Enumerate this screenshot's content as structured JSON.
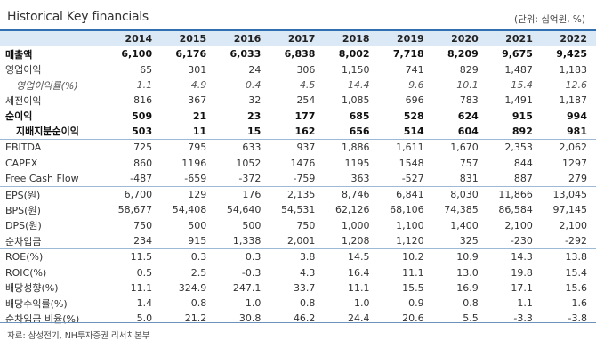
{
  "title": "Historical Key financials",
  "unit": "(단위: 십억원, %)",
  "years": [
    "2014",
    "2015",
    "2016",
    "2017",
    "2018",
    "2019",
    "2020",
    "2021",
    "2022"
  ],
  "rows": [
    {
      "label": "매출액",
      "values": [
        "6,100",
        "6,176",
        "6,033",
        "6,838",
        "8,002",
        "7,718",
        "8,209",
        "9,675",
        "9,425"
      ],
      "style": "bold"
    },
    {
      "label": "영업이익",
      "values": [
        "65",
        "301",
        "24",
        "306",
        "1,150",
        "741",
        "829",
        "1,487",
        "1,183"
      ],
      "style": ""
    },
    {
      "label": "영업이익률(%)",
      "values": [
        "1.1",
        "4.9",
        "0.4",
        "4.5",
        "14.4",
        "9.6",
        "10.1",
        "15.4",
        "12.6"
      ],
      "style": "italic indent"
    },
    {
      "label": "세전이익",
      "values": [
        "816",
        "367",
        "32",
        "254",
        "1,085",
        "696",
        "783",
        "1,491",
        "1,187"
      ],
      "style": ""
    },
    {
      "label": "순이익",
      "values": [
        "509",
        "21",
        "23",
        "177",
        "685",
        "528",
        "624",
        "915",
        "994"
      ],
      "style": "bold"
    },
    {
      "label": "지배지분순이익",
      "values": [
        "503",
        "11",
        "15",
        "162",
        "656",
        "514",
        "604",
        "892",
        "981"
      ],
      "style": "bold indent"
    },
    {
      "label": "EBITDA",
      "values": [
        "725",
        "795",
        "633",
        "937",
        "1,886",
        "1,611",
        "1,670",
        "2,353",
        "2,062"
      ],
      "style": "sep-top"
    },
    {
      "label": "CAPEX",
      "values": [
        "860",
        "1196",
        "1052",
        "1476",
        "1195",
        "1548",
        "757",
        "844",
        "1297"
      ],
      "style": ""
    },
    {
      "label": "Free Cash Flow",
      "values": [
        "-487",
        "-659",
        "-372",
        "-759",
        "363",
        "-527",
        "831",
        "887",
        "279"
      ],
      "style": ""
    },
    {
      "label": "EPS(원)",
      "values": [
        "6,700",
        "129",
        "176",
        "2,135",
        "8,746",
        "6,841",
        "8,030",
        "11,866",
        "13,045"
      ],
      "style": "sep-top"
    },
    {
      "label": "BPS(원)",
      "values": [
        "58,677",
        "54,408",
        "54,640",
        "54,531",
        "62,126",
        "68,106",
        "74,385",
        "86,584",
        "97,145"
      ],
      "style": ""
    },
    {
      "label": "DPS(원)",
      "values": [
        "750",
        "500",
        "500",
        "750",
        "1,000",
        "1,100",
        "1,400",
        "2,100",
        "2,100"
      ],
      "style": ""
    },
    {
      "label": "순차입금",
      "values": [
        "234",
        "915",
        "1,338",
        "2,001",
        "1,208",
        "1,120",
        "325",
        "-230",
        "-292"
      ],
      "style": ""
    },
    {
      "label": "ROE(%)",
      "values": [
        "11.5",
        "0.3",
        "0.3",
        "3.8",
        "14.5",
        "10.2",
        "10.9",
        "14.3",
        "13.8"
      ],
      "style": "sep-top"
    },
    {
      "label": "ROIC(%)",
      "values": [
        "0.5",
        "2.5",
        "-0.3",
        "4.3",
        "16.4",
        "11.1",
        "13.0",
        "19.8",
        "15.4"
      ],
      "style": ""
    },
    {
      "label": "배당성향(%)",
      "values": [
        "11.1",
        "324.9",
        "247.1",
        "33.7",
        "11.1",
        "15.5",
        "16.9",
        "17.1",
        "15.6"
      ],
      "style": ""
    },
    {
      "label": "배당수익률(%)",
      "values": [
        "1.4",
        "0.8",
        "1.0",
        "0.8",
        "1.0",
        "0.9",
        "0.8",
        "1.1",
        "1.6"
      ],
      "style": ""
    },
    {
      "label": "순차입금 비율(%)",
      "values": [
        "5.0",
        "21.2",
        "30.8",
        "46.2",
        "24.4",
        "20.6",
        "5.5",
        "-3.3",
        "-3.8"
      ],
      "style": ""
    }
  ],
  "source": "자료: 삼성전기, NH투자증권 리서치본부"
}
